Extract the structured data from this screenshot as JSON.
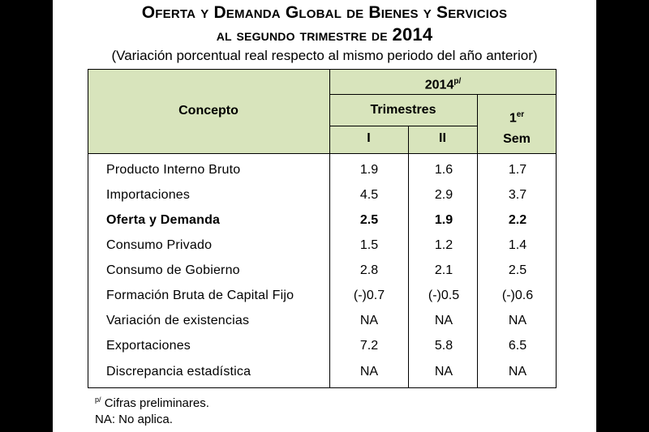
{
  "title": {
    "line1": "Oferta y Demanda Global de Bienes y Servicios",
    "line2_prefix": "al segundo trimestre de",
    "line2_year": "2014",
    "subtitle": "(Variación porcentual real respecto al mismo periodo del año anterior)"
  },
  "table": {
    "header": {
      "concepto": "Concepto",
      "year": "2014",
      "year_mark": "p/",
      "trimestres": "Trimestres",
      "col_q1": "I",
      "col_q2": "II",
      "sem_top": "1",
      "sem_sup": "er",
      "sem_bottom": "Sem"
    },
    "rows": [
      {
        "label": "Producto Interno Bruto",
        "q1": "1.9",
        "q2": "1.6",
        "sem": "1.7",
        "bold": false
      },
      {
        "label": "Importaciones",
        "q1": "4.5",
        "q2": "2.9",
        "sem": "3.7",
        "bold": false
      },
      {
        "label": "Oferta y Demanda",
        "q1": "2.5",
        "q2": "1.9",
        "sem": "2.2",
        "bold": true
      },
      {
        "label": "Consumo Privado",
        "q1": "1.5",
        "q2": "1.2",
        "sem": "1.4",
        "bold": false
      },
      {
        "label": "Consumo de Gobierno",
        "q1": "2.8",
        "q2": "2.1",
        "sem": "2.5",
        "bold": false
      },
      {
        "label": "Formación Bruta de Capital Fijo",
        "q1": "(-)0.7",
        "q2": "(-)0.5",
        "sem": "(-)0.6",
        "bold": false
      },
      {
        "label": "Variación de existencias",
        "q1": "NA",
        "q2": "NA",
        "sem": "NA",
        "bold": false
      },
      {
        "label": "Exportaciones",
        "q1": "7.2",
        "q2": "5.8",
        "sem": "6.5",
        "bold": false
      },
      {
        "label": "Discrepancia estadística",
        "q1": "NA",
        "q2": "NA",
        "sem": "NA",
        "bold": false
      }
    ]
  },
  "notes": {
    "note1_mark": "p/",
    "note1_text": "Cifras preliminares.",
    "note2_text": "NA: No aplica."
  },
  "colors": {
    "header_bg": "#d8e4bc",
    "side_bars": "#000000"
  }
}
